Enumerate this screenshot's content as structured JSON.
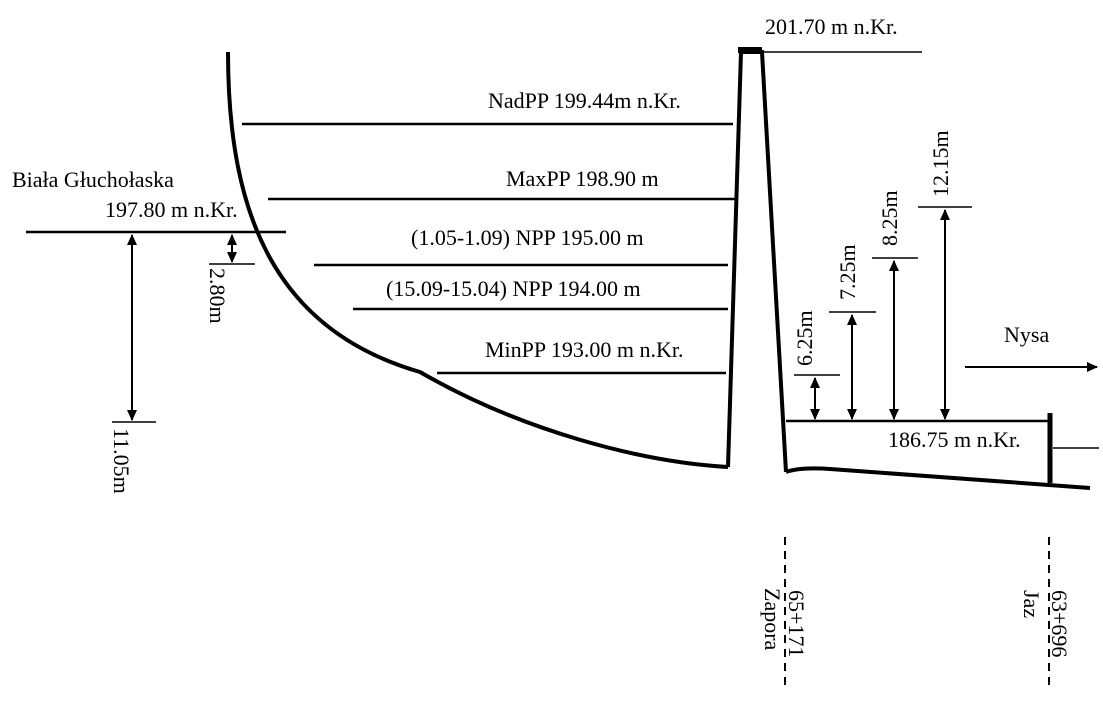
{
  "levels": {
    "crest": "201.70 m n.Kr.",
    "nadpp": "NadPP 199.44m n.Kr.",
    "maxpp": "MaxPP 198.90 m",
    "npp_summer": "(1.05-1.09) NPP 195.00 m",
    "npp_winter": "(15.09-15.04) NPP 194.00 m",
    "minpp": "MinPP 193.00 m n.Kr.",
    "tailwater": "186.75 m n.Kr."
  },
  "inflow": {
    "river": "Biała Głuchołaska",
    "level": "197.80 m n.Kr."
  },
  "outflow": {
    "river": "Nysa"
  },
  "dimensions": {
    "d_2_80": "2.80m",
    "d_11_05": "11.05m",
    "d_6_25": "6.25m",
    "d_7_25": "7.25m",
    "d_8_25": "8.25m",
    "d_12_15": "12.15m"
  },
  "stations": {
    "dam_km": "65+171",
    "dam_name": "Zapora",
    "weir_km": "63+696",
    "weir_name": "Jaz"
  }
}
